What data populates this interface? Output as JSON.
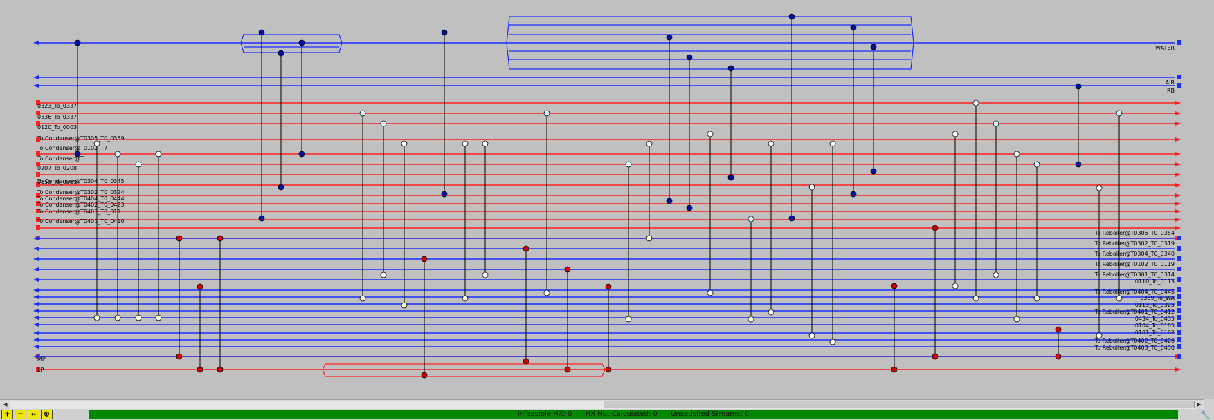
{
  "colors": {
    "background": "#c0c0c0",
    "hot_stream": "#ff2020",
    "cold_stream": "#1a2fff",
    "exchanger_fill": "#0010a0",
    "heater_fill": "#d00000",
    "cooler_fill": "#ffffff",
    "status_bar": "#008800",
    "zoom_buttons": "#f1e800"
  },
  "streams_left": [
    {
      "label": "",
      "type": "cold"
    },
    {
      "label": "",
      "type": "cold"
    },
    {
      "label": "",
      "type": "cold"
    },
    {
      "label": "0323_To_0337",
      "type": "hot"
    },
    {
      "label": "0336_To_0337",
      "type": "hot"
    },
    {
      "label": "0120_To_0003",
      "type": "hot"
    },
    {
      "label": "To Condenser@T0305_T0_0359",
      "type": "hot"
    },
    {
      "label": "To Condenser@T0102_T7",
      "type": "hot"
    },
    {
      "label": "To Condenser@T",
      "type": "hot"
    },
    {
      "label": "0207_To_0208",
      "type": "hot"
    },
    {
      "label": "To Condenser@T0304_T0_0345",
      "type": "hot"
    },
    {
      "label": "0358_To_0339",
      "type": "hot"
    },
    {
      "label": "To Condenser@T0302_T0_0324",
      "type": "hot"
    },
    {
      "label": "To Condenser@T0404_T0_0444",
      "type": "hot"
    },
    {
      "label": "To Condenser@T0402_T0_0423",
      "type": "hot"
    },
    {
      "label": "To Condenser@T0403_T0_011",
      "type": "hot"
    },
    {
      "label": "To Condenser@T0401_T0_0410",
      "type": "hot"
    },
    {
      "label": "MP",
      "type": "hot"
    },
    {
      "label": "LP",
      "type": "hot"
    }
  ],
  "streams_right": [
    {
      "label": "WATER",
      "type": "cold"
    },
    {
      "label": "AIR",
      "type": "cold"
    },
    {
      "label": "RB",
      "type": "cold"
    },
    {
      "label": "To Reboiler@T0305_T0_0354",
      "type": "cold"
    },
    {
      "label": "To Reboiler@T0302_T0_0319",
      "type": "cold"
    },
    {
      "label": "To Reboiler@T0304_T0_0340",
      "type": "cold"
    },
    {
      "label": "To Reboiler@T0102_T0_0119",
      "type": "cold"
    },
    {
      "label": "To Reboiler@T0301_T0_0314",
      "type": "cold"
    },
    {
      "label": "0110_To_0113",
      "type": "cold"
    },
    {
      "label": "To Reboiler@T0404_T0_0445",
      "type": "cold"
    },
    {
      "label": "0339_To_WA",
      "type": "cold"
    },
    {
      "label": "0113_To_0325",
      "type": "cold"
    },
    {
      "label": "To Reboiler@T0401_T0_0412",
      "type": "cold"
    },
    {
      "label": "0434_To_0435",
      "type": "cold"
    },
    {
      "label": "0104_To_0105",
      "type": "cold"
    },
    {
      "label": "0101_To_0102",
      "type": "cold"
    },
    {
      "label": "To Reboiler@T0402_T0_0426",
      "type": "cold"
    },
    {
      "label": "To Reboiler@T0403_T0_0430",
      "type": "cold"
    }
  ],
  "toolbar": {
    "zoom_in": "+",
    "zoom_out": "−",
    "fit": "↔",
    "fit_all": "⊕"
  },
  "status": {
    "infeasible": "Infeasible HX: 0",
    "not_calculated": "HX Not Calculated: 0",
    "unsatisfied": "Unsatisfied Streams: 0"
  },
  "icons": {
    "tool": "wrench-icon"
  }
}
